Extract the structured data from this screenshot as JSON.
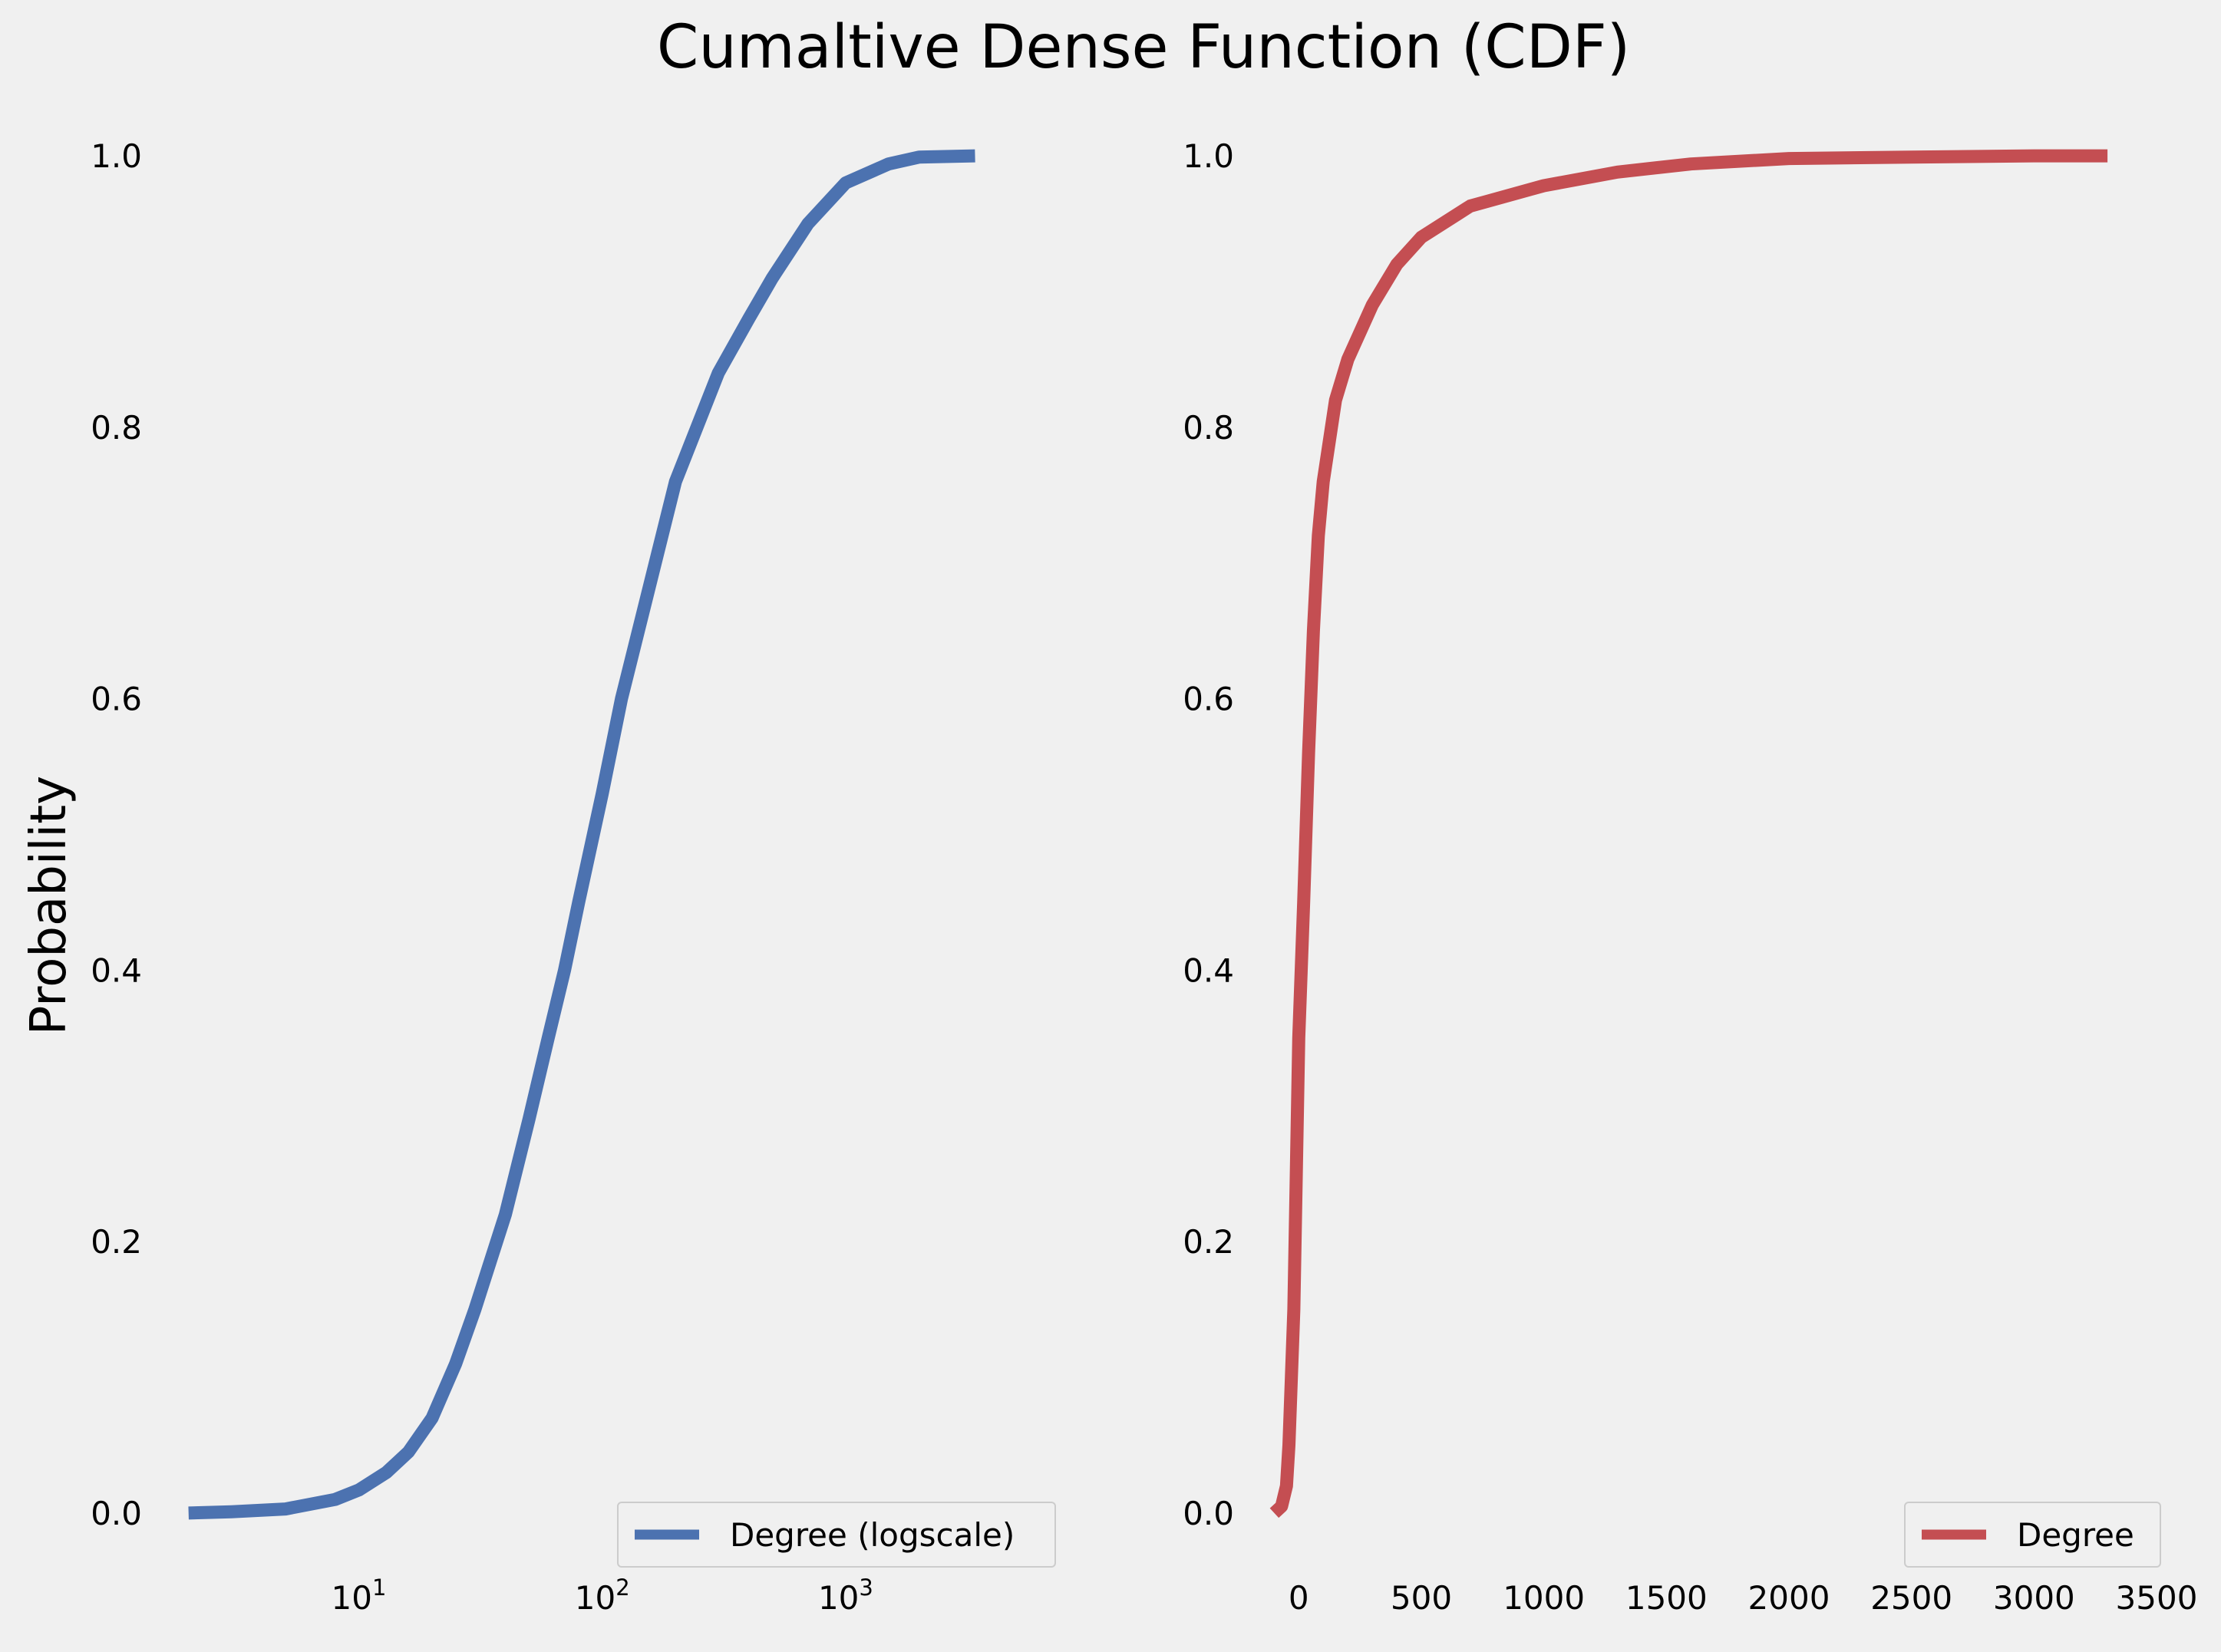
{
  "figure": {
    "title": "Cumaltive Dense Function (CDF)",
    "ylabel": "Probability",
    "background": "#f0f0f0"
  },
  "chart_data": [
    {
      "type": "line",
      "xscale": "log",
      "xlim": [
        1.6,
        7000
      ],
      "ylim": [
        -0.03,
        1.03
      ],
      "grid": false,
      "legend_position": "lower-right",
      "x_ticks": [
        {
          "base": "10",
          "exp": "1",
          "value": 10
        },
        {
          "base": "10",
          "exp": "2",
          "value": 100
        },
        {
          "base": "10",
          "exp": "3",
          "value": 1000
        }
      ],
      "y_ticks": [
        "0.0",
        "0.2",
        "0.4",
        "0.6",
        "0.8",
        "1.0"
      ],
      "series": [
        {
          "name": "Degree (logscale)",
          "color": "#4c72b0",
          "points": [
            [
              2,
              0.0
            ],
            [
              3,
              0.001
            ],
            [
              5,
              0.003
            ],
            [
              8,
              0.01
            ],
            [
              10,
              0.017
            ],
            [
              13,
              0.03
            ],
            [
              16,
              0.045
            ],
            [
              20,
              0.07
            ],
            [
              25,
              0.11
            ],
            [
              30,
              0.15
            ],
            [
              40,
              0.22
            ],
            [
              50,
              0.29
            ],
            [
              60,
              0.35
            ],
            [
              70,
              0.4
            ],
            [
              80,
              0.45
            ],
            [
              100,
              0.53
            ],
            [
              120,
              0.6
            ],
            [
              150,
              0.67
            ],
            [
              200,
              0.76
            ],
            [
              300,
              0.84
            ],
            [
              400,
              0.88
            ],
            [
              500,
              0.91
            ],
            [
              700,
              0.95
            ],
            [
              1000,
              0.98
            ],
            [
              1500,
              0.994
            ],
            [
              2000,
              0.999
            ],
            [
              3400,
              1.0
            ]
          ]
        }
      ]
    },
    {
      "type": "line",
      "xlim": [
        -170,
        3500
      ],
      "ylim": [
        -0.03,
        1.03
      ],
      "grid": false,
      "legend_position": "lower-right",
      "x_ticks": [
        "0",
        "500",
        "1000",
        "1500",
        "2000",
        "2500",
        "3000",
        "3500"
      ],
      "x_tick_values": [
        0,
        500,
        1000,
        1500,
        2000,
        2500,
        3000,
        3500
      ],
      "y_ticks": [
        "0.0",
        "0.2",
        "0.4",
        "0.6",
        "0.8",
        "1.0"
      ],
      "series": [
        {
          "name": "Degree",
          "color": "#c44e52",
          "points": [
            [
              -100,
              0.0
            ],
            [
              -70,
              0.005
            ],
            [
              -50,
              0.02
            ],
            [
              -40,
              0.05
            ],
            [
              -30,
              0.1
            ],
            [
              -20,
              0.15
            ],
            [
              -10,
              0.25
            ],
            [
              0,
              0.35
            ],
            [
              20,
              0.45
            ],
            [
              40,
              0.56
            ],
            [
              60,
              0.65
            ],
            [
              80,
              0.72
            ],
            [
              100,
              0.76
            ],
            [
              150,
              0.82
            ],
            [
              200,
              0.85
            ],
            [
              300,
              0.89
            ],
            [
              400,
              0.92
            ],
            [
              500,
              0.94
            ],
            [
              700,
              0.963
            ],
            [
              1000,
              0.978
            ],
            [
              1300,
              0.988
            ],
            [
              1600,
              0.994
            ],
            [
              2000,
              0.998
            ],
            [
              2500,
              0.999
            ],
            [
              3000,
              1.0
            ],
            [
              3300,
              1.0
            ]
          ]
        }
      ]
    }
  ]
}
